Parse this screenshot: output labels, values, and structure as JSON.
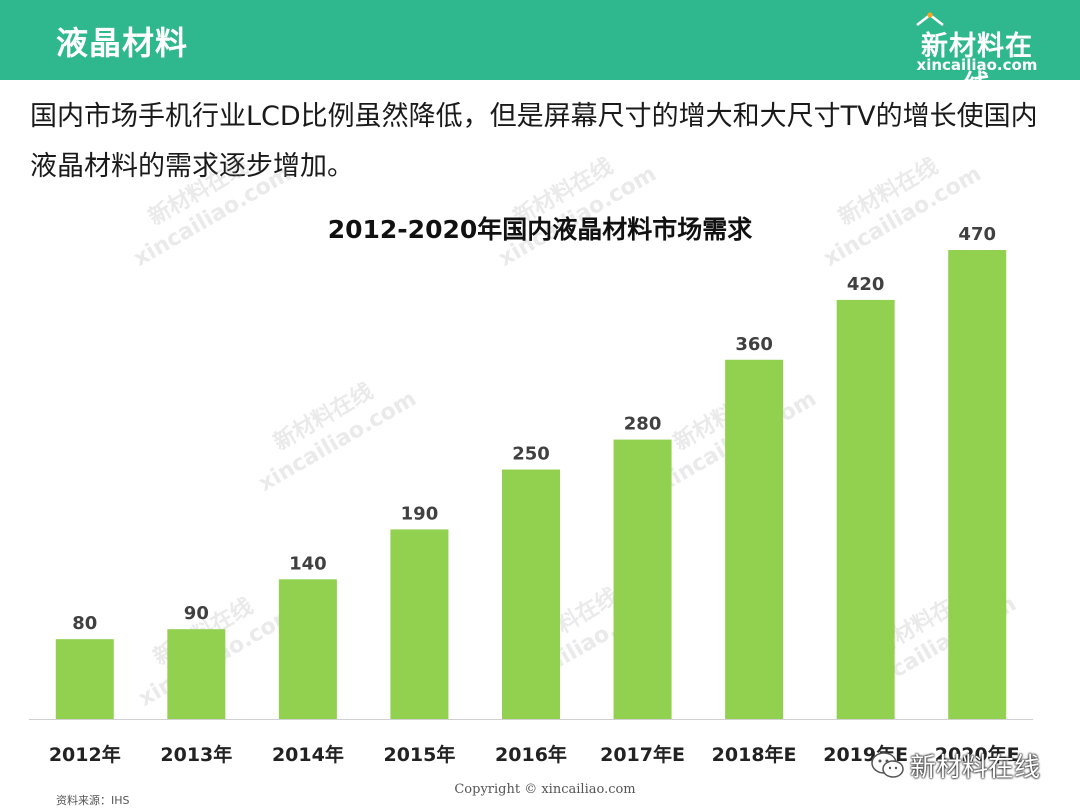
{
  "header": {
    "title": "液晶材料"
  },
  "logo": {
    "name": "新材料在线",
    "domain": "xincailiao.com"
  },
  "intro": {
    "text": "国内市场手机行业LCD比例虽然降低，但是屏幕尺寸的增大和大尺寸TV的增长使国内液晶材料的需求逐步增加。"
  },
  "chart_data": {
    "type": "bar",
    "title": "2012-2020年国内液晶材料市场需求",
    "categories": [
      "2012年",
      "2013年",
      "2014年",
      "2015年",
      "2016年",
      "2017年E",
      "2018年E",
      "2019年E",
      "2020年E"
    ],
    "values": [
      80,
      90,
      140,
      190,
      250,
      280,
      360,
      420,
      470
    ],
    "ylim": [
      0,
      470
    ],
    "grid": false,
    "legend": "none",
    "bar_color": "#92d050"
  },
  "footer": {
    "source": "资料来源：IHS",
    "copyright": "Copyright © xincailiao.com"
  },
  "watermark": {
    "brand": "新材料在线",
    "site": "xincailiao.com"
  },
  "colors": {
    "header_bg": "#2fb78e",
    "bar": "#92d050"
  }
}
